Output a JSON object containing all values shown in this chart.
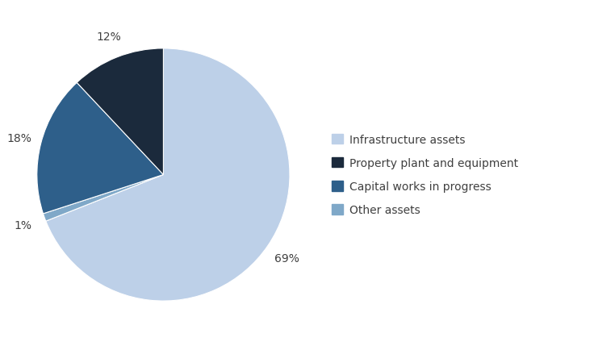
{
  "labels": [
    "Infrastructure assets",
    "Property plant and equipment",
    "Capital works in progress",
    "Other assets"
  ],
  "values": [
    69,
    12,
    18,
    1
  ],
  "colors": [
    "#bdd0e8",
    "#1b2a3c",
    "#2e5f8a",
    "#7fa8c8"
  ],
  "pct_labels": [
    "69%",
    "12%",
    "18%",
    "1%"
  ],
  "startangle": 90,
  "legend_labels": [
    "Infrastructure assets",
    "Property plant and equipment",
    "Capital works in progress",
    "Other assets"
  ],
  "label_fontsize": 10,
  "legend_fontsize": 10,
  "background_color": "#ffffff",
  "text_color": "#404040"
}
